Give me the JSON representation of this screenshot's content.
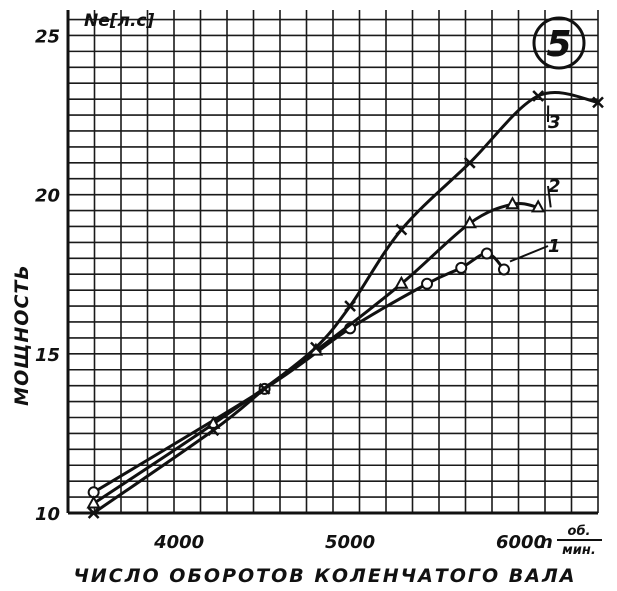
{
  "chart_data": {
    "type": "line",
    "figure_number": "5",
    "ylabel": "МОЩНОСТЬ",
    "y_unit": "Ne[л.с]",
    "xlabel": "ЧИСЛО ОБОРОТОВ КОЛЕНЧАТОГО ВАЛА",
    "x_unit_symbol": "n",
    "x_unit_numerator": "об.",
    "x_unit_denominator": "мин.",
    "xlim": [
      3350,
      6450
    ],
    "ylim": [
      10,
      25.8
    ],
    "x_ticks": [
      4000,
      5000,
      6000
    ],
    "x_tick_labels": [
      "4000",
      "5000",
      "6000"
    ],
    "y_ticks": [
      10,
      15,
      20,
      25
    ],
    "y_tick_labels": [
      "10",
      "15",
      "20",
      "25"
    ],
    "grid": true,
    "series": [
      {
        "name": "1",
        "marker": "circle",
        "x": [
          3500,
          4500,
          5000,
          5450,
          5650,
          5800,
          5900
        ],
        "y": [
          10.65,
          13.9,
          15.8,
          17.2,
          17.7,
          18.15,
          17.65
        ]
      },
      {
        "name": "2",
        "marker": "triangle",
        "x": [
          3500,
          4200,
          4800,
          5300,
          5700,
          5950,
          6100
        ],
        "y": [
          10.3,
          12.8,
          15.1,
          17.2,
          19.1,
          19.7,
          19.6
        ]
      },
      {
        "name": "3",
        "marker": "cross",
        "x": [
          3500,
          4200,
          4500,
          4800,
          5000,
          5300,
          5700,
          6100,
          6450
        ],
        "y": [
          10.0,
          12.6,
          13.9,
          15.2,
          16.5,
          18.9,
          21.0,
          23.1,
          22.9
        ]
      }
    ]
  }
}
